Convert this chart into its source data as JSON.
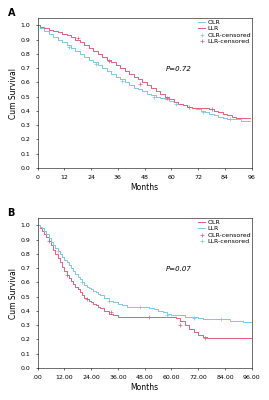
{
  "panel_A": {
    "title": "A",
    "xlabel": "Months",
    "ylabel": "Cum Survival",
    "xlim": [
      0,
      96
    ],
    "ylim": [
      0.0,
      1.05
    ],
    "xticks": [
      0,
      12,
      24,
      36,
      48,
      60,
      72,
      84,
      96
    ],
    "xtick_labels": [
      "0",
      "12",
      "24",
      "36",
      "48",
      "60",
      "72",
      "84",
      "96"
    ],
    "yticks": [
      0.0,
      0.1,
      0.2,
      0.3,
      0.4,
      0.5,
      0.6,
      0.7,
      0.8,
      0.9,
      1.0
    ],
    "pvalue": "P=0.72",
    "OLR_color": "#7bc8e8",
    "LLR_color": "#e06080",
    "OLR_x": [
      0,
      1,
      3,
      5,
      7,
      9,
      11,
      13,
      15,
      17,
      19,
      21,
      23,
      25,
      27,
      29,
      31,
      33,
      35,
      37,
      39,
      41,
      43,
      45,
      47,
      49,
      51,
      53,
      55,
      57,
      59,
      61,
      63,
      65,
      67,
      69,
      71,
      73,
      75,
      77,
      79,
      81,
      83,
      85,
      87,
      89,
      91,
      93,
      95
    ],
    "OLR_y": [
      1.0,
      0.98,
      0.96,
      0.94,
      0.92,
      0.9,
      0.88,
      0.86,
      0.84,
      0.82,
      0.8,
      0.78,
      0.76,
      0.74,
      0.72,
      0.7,
      0.68,
      0.66,
      0.64,
      0.62,
      0.6,
      0.58,
      0.56,
      0.55,
      0.54,
      0.52,
      0.51,
      0.5,
      0.49,
      0.48,
      0.47,
      0.46,
      0.45,
      0.44,
      0.43,
      0.42,
      0.41,
      0.4,
      0.39,
      0.38,
      0.37,
      0.36,
      0.35,
      0.34,
      0.34,
      0.34,
      0.33,
      0.33,
      0.33
    ],
    "LLR_x": [
      0,
      1,
      3,
      5,
      7,
      9,
      11,
      13,
      15,
      17,
      19,
      21,
      23,
      25,
      27,
      29,
      31,
      33,
      35,
      37,
      39,
      41,
      43,
      45,
      47,
      49,
      51,
      53,
      55,
      57,
      59,
      61,
      63,
      65,
      67,
      69,
      71,
      73,
      75,
      77,
      79,
      81,
      83,
      85,
      87,
      89,
      91,
      93,
      95
    ],
    "LLR_y": [
      1.0,
      0.99,
      0.98,
      0.97,
      0.96,
      0.95,
      0.94,
      0.93,
      0.92,
      0.9,
      0.88,
      0.86,
      0.84,
      0.82,
      0.8,
      0.78,
      0.76,
      0.74,
      0.72,
      0.7,
      0.68,
      0.66,
      0.64,
      0.62,
      0.6,
      0.58,
      0.56,
      0.54,
      0.52,
      0.5,
      0.48,
      0.46,
      0.45,
      0.44,
      0.43,
      0.42,
      0.42,
      0.42,
      0.42,
      0.41,
      0.4,
      0.39,
      0.38,
      0.37,
      0.36,
      0.35,
      0.35,
      0.35,
      0.35
    ],
    "OLR_censor_x": [
      14,
      26,
      38,
      52,
      62,
      74,
      86
    ],
    "OLR_censor_y": [
      0.85,
      0.73,
      0.61,
      0.5,
      0.45,
      0.39,
      0.34
    ],
    "LLR_censor_x": [
      18,
      32,
      46,
      58,
      68,
      78
    ],
    "LLR_censor_y": [
      0.91,
      0.75,
      0.59,
      0.49,
      0.43,
      0.41
    ]
  },
  "panel_B": {
    "title": "B",
    "xlabel": "Months",
    "ylabel": "Cum Survival",
    "xlim": [
      0,
      96
    ],
    "ylim": [
      0.0,
      1.05
    ],
    "xticks": [
      0,
      12,
      24,
      36,
      48,
      60,
      72,
      84,
      96
    ],
    "xtick_labels": [
      ".00",
      "12.00",
      "24.00",
      "36.00",
      "48.00",
      "60.00",
      "72.00",
      "84.00",
      "96.00"
    ],
    "yticks": [
      0.0,
      0.1,
      0.2,
      0.3,
      0.4,
      0.5,
      0.6,
      0.7,
      0.8,
      0.9,
      1.0
    ],
    "pvalue": "P=0.07",
    "OLR_color": "#e06080",
    "LLR_color": "#7bc8e8",
    "OLR_x": [
      0,
      1,
      2,
      3,
      4,
      5,
      6,
      7,
      8,
      9,
      10,
      11,
      12,
      13,
      14,
      15,
      16,
      17,
      18,
      19,
      20,
      21,
      22,
      23,
      24,
      25,
      26,
      27,
      28,
      30,
      32,
      34,
      36,
      38,
      40,
      42,
      44,
      46,
      48,
      50,
      52,
      54,
      56,
      58,
      60,
      62,
      64,
      66,
      68,
      70,
      72,
      74,
      76,
      78,
      80,
      82,
      84,
      86,
      88,
      90,
      92,
      94,
      96
    ],
    "OLR_y": [
      1.0,
      0.98,
      0.96,
      0.94,
      0.92,
      0.89,
      0.86,
      0.83,
      0.8,
      0.77,
      0.74,
      0.71,
      0.68,
      0.65,
      0.63,
      0.61,
      0.59,
      0.57,
      0.55,
      0.53,
      0.51,
      0.49,
      0.48,
      0.47,
      0.46,
      0.45,
      0.44,
      0.43,
      0.42,
      0.4,
      0.38,
      0.37,
      0.36,
      0.36,
      0.36,
      0.36,
      0.36,
      0.36,
      0.36,
      0.36,
      0.36,
      0.36,
      0.36,
      0.36,
      0.36,
      0.35,
      0.33,
      0.3,
      0.27,
      0.25,
      0.23,
      0.22,
      0.21,
      0.21,
      0.21,
      0.21,
      0.21,
      0.21,
      0.21,
      0.21,
      0.21,
      0.21,
      0.21
    ],
    "LLR_x": [
      0,
      1,
      2,
      3,
      4,
      5,
      6,
      7,
      8,
      9,
      10,
      11,
      12,
      13,
      14,
      15,
      16,
      17,
      18,
      19,
      20,
      21,
      22,
      23,
      24,
      25,
      26,
      27,
      28,
      30,
      32,
      34,
      36,
      38,
      40,
      42,
      44,
      46,
      48,
      50,
      52,
      54,
      56,
      58,
      60,
      62,
      64,
      66,
      68,
      70,
      72,
      74,
      76,
      78,
      80,
      82,
      84,
      86,
      88,
      90,
      92,
      94,
      96
    ],
    "LLR_y": [
      1.0,
      0.99,
      0.98,
      0.96,
      0.94,
      0.91,
      0.88,
      0.86,
      0.84,
      0.82,
      0.8,
      0.78,
      0.76,
      0.74,
      0.72,
      0.7,
      0.68,
      0.66,
      0.64,
      0.62,
      0.6,
      0.58,
      0.57,
      0.56,
      0.55,
      0.54,
      0.53,
      0.52,
      0.51,
      0.49,
      0.47,
      0.46,
      0.45,
      0.44,
      0.43,
      0.43,
      0.43,
      0.43,
      0.43,
      0.42,
      0.41,
      0.4,
      0.39,
      0.38,
      0.37,
      0.37,
      0.37,
      0.36,
      0.36,
      0.36,
      0.35,
      0.34,
      0.34,
      0.34,
      0.34,
      0.34,
      0.34,
      0.33,
      0.33,
      0.33,
      0.32,
      0.32,
      0.32
    ],
    "OLR_censor_x": [
      5,
      13,
      22,
      33,
      50,
      64,
      75
    ],
    "OLR_censor_y": [
      0.89,
      0.65,
      0.48,
      0.39,
      0.36,
      0.3,
      0.21
    ],
    "LLR_censor_x": [
      9,
      20,
      32,
      46,
      58,
      70,
      82
    ],
    "LLR_censor_y": [
      0.82,
      0.6,
      0.47,
      0.43,
      0.37,
      0.35,
      0.34
    ]
  },
  "background_color": "#ffffff",
  "font_size": 5.5,
  "legend_font_size": 4.5,
  "pvalue_font_size": 5.0,
  "axis_label_fontsize": 5.5,
  "tick_fontsize": 4.5
}
